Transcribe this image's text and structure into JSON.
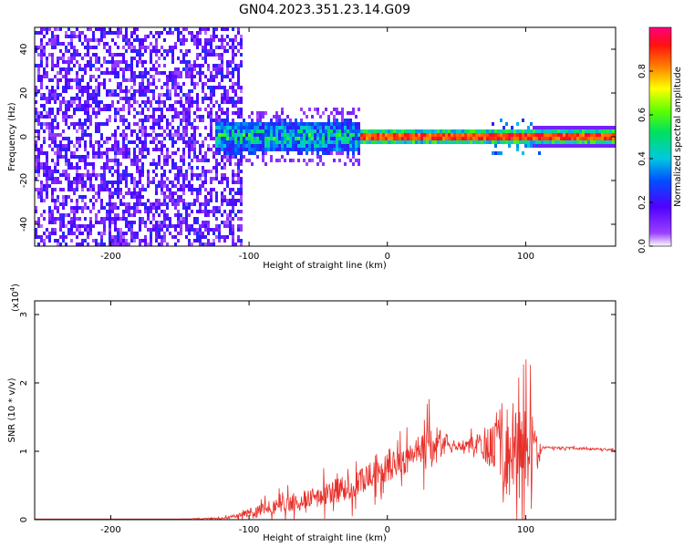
{
  "title": "GN04.2023.351.23.14.G09",
  "chart_data": [
    {
      "type": "heatmap",
      "xlabel": "Height of straight line (km)",
      "ylabel": "Frequency (Hz)",
      "xlim": [
        -255,
        165
      ],
      "ylim": [
        -50,
        50
      ],
      "xticks": [
        -200,
        -100,
        0,
        100
      ],
      "yticks": [
        -40,
        -20,
        0,
        20,
        40
      ],
      "colorbar": {
        "label": "Normalized spectral amplitude",
        "range": [
          0.0,
          1.0
        ],
        "ticks": [
          "0.0",
          "0.2",
          "0.4",
          "0.6",
          "0.8"
        ],
        "colormap": [
          "#ffffff",
          "#7b00ff",
          "#0040ff",
          "#00e0e0",
          "#00ff00",
          "#ffff00",
          "#ff8000",
          "#ff0000",
          "#ff0080"
        ]
      },
      "regions": [
        {
          "x": [
            -255,
            -105
          ],
          "description": "broadband noise, amplitude 0.1-0.3"
        },
        {
          "x": [
            -125,
            -20
          ],
          "freq_center": 0,
          "freq_halfwidth": 6,
          "amplitude": 0.4
        },
        {
          "x": [
            -20,
            165
          ],
          "freq_center": 0,
          "freq_halfwidth": 3,
          "amplitude": 0.9
        }
      ]
    },
    {
      "type": "line",
      "xlabel": "Height of straight line (km)",
      "ylabel": "SNR (10 * v/v)",
      "multiplier_label": "(x10",
      "multiplier_exp": "4",
      "multiplier_close": ")",
      "xlim": [
        -255,
        165
      ],
      "ylim": [
        0,
        3.2
      ],
      "xticks": [
        -200,
        -100,
        0,
        100
      ],
      "yticks": [
        0,
        1,
        2,
        3
      ],
      "series": [
        {
          "color": "#e8302a",
          "x": [
            -255,
            -150,
            -120,
            -110,
            -100,
            -80,
            -60,
            -40,
            -20,
            0,
            20,
            30,
            40,
            50,
            60,
            70,
            75,
            80,
            85,
            90,
            95,
            100,
            105,
            108,
            112,
            120,
            140,
            165
          ],
          "y": [
            0.01,
            0.01,
            0.02,
            0.05,
            0.1,
            0.2,
            0.3,
            0.4,
            0.55,
            0.75,
            0.95,
            1.05,
            1.1,
            1.08,
            1.1,
            1.12,
            1.05,
            1.2,
            1.0,
            1.1,
            1.0,
            1.1,
            1.0,
            0.95,
            1.05,
            1.05,
            1.04,
            1.02
          ],
          "noise_amp": [
            0.0,
            0.0,
            0.02,
            0.05,
            0.1,
            0.2,
            0.25,
            0.3,
            0.35,
            0.35,
            0.35,
            0.6,
            0.35,
            0.1,
            0.15,
            0.4,
            0.6,
            1.0,
            1.1,
            1.3,
            1.2,
            1.0,
            0.9,
            0.5,
            0.04,
            0.03,
            0.03,
            0.03
          ]
        }
      ]
    }
  ]
}
